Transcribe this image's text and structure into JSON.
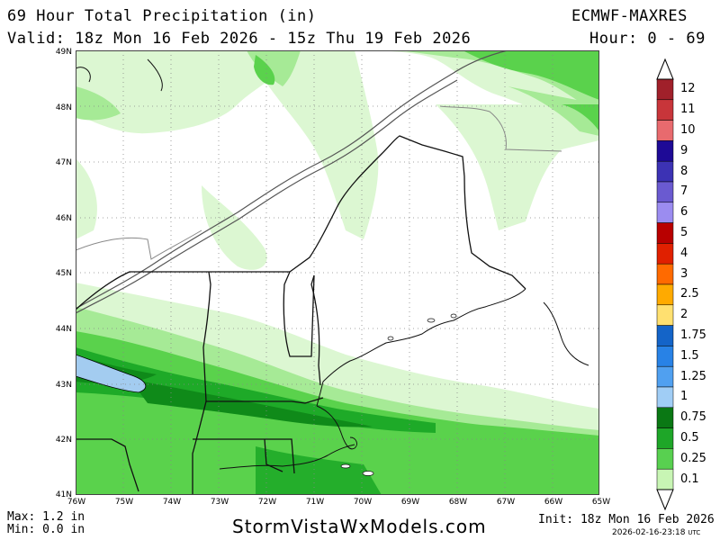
{
  "header": {
    "title": "69 Hour Total Precipitation (in)",
    "valid": "Valid: 18z Mon 16 Feb 2026 - 15z Thu 19 Feb 2026",
    "model": "ECMWF-MAXRES",
    "hour": "Hour: 0 - 69"
  },
  "footer": {
    "max": "Max: 1.2 in",
    "min": "Min: 0.0 in",
    "brand": "StormVistaWxModels.com",
    "init": "Init: 18z Mon 16 Feb 2026",
    "timestamp": "2026-02-16-23:18",
    "timestamp_unit": "UTC"
  },
  "map": {
    "lat_labels": [
      "49N",
      "48N",
      "47N",
      "46N",
      "45N",
      "44N",
      "43N",
      "42N",
      "41N"
    ],
    "lon_labels": [
      "76W",
      "75W",
      "74W",
      "73W",
      "72W",
      "71W",
      "70W",
      "69W",
      "68W",
      "67W",
      "66W",
      "65W"
    ]
  },
  "legend": {
    "labels": [
      "12",
      "11",
      "10",
      "9",
      "8",
      "7",
      "6",
      "5",
      "4",
      "3",
      "2.5",
      "2",
      "1.75",
      "1.5",
      "1.25",
      "1",
      "0.75",
      "0.5",
      "0.25",
      "0.1"
    ],
    "colors": [
      "#a0202a",
      "#c8353a",
      "#e86a6e",
      "#1e0a96",
      "#3c32b4",
      "#6a5ad0",
      "#9b8cf0",
      "#b80000",
      "#e02000",
      "#ff6a00",
      "#ffaa00",
      "#ffe070",
      "#1464c8",
      "#2882e6",
      "#50a0f0",
      "#a0cdf5",
      "#0a7814",
      "#1ea628",
      "#58d050",
      "#c8f5b4"
    ]
  },
  "colors": {
    "very_light_green": "#dcf7d2",
    "light_green": "#a6ea96",
    "mid_green": "#5ad24c",
    "green": "#1eaa28",
    "dark_green": "#0f8a19",
    "lake_blue": "#a3ccf0"
  }
}
